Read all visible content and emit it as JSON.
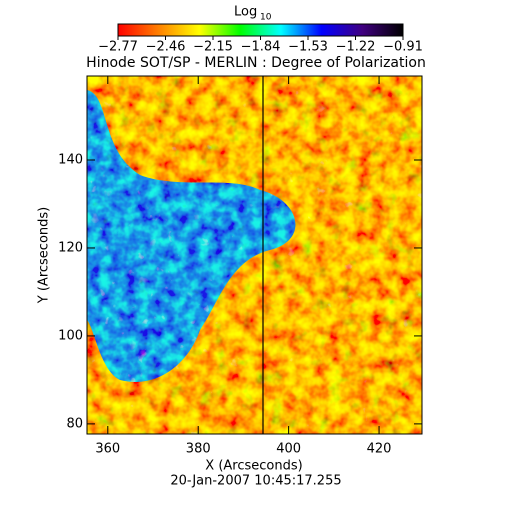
{
  "chart_data": {
    "type": "heatmap",
    "title": "Hinode SOT/SP - MERLIN : Degree of Polarization",
    "subtitle": "20-Jan-2007 10:45:17.255",
    "x_label": "X (Arcseconds)",
    "y_label": "Y (Arcseconds)",
    "colorbar_label": "Log",
    "colorbar_label_subscript": "10",
    "xlim": [
      355.4,
      429.5
    ],
    "xticks": [
      360,
      380,
      400,
      420
    ],
    "ylim": [
      77.7,
      159.1
    ],
    "yticks": [
      80,
      100,
      120,
      140
    ],
    "zlim": [
      -2.77,
      -0.91
    ],
    "zticks": [
      {
        "value": -2.77,
        "label": "−2.77"
      },
      {
        "value": -2.46,
        "label": "−2.46"
      },
      {
        "value": -2.15,
        "label": "−2.15"
      },
      {
        "value": -1.84,
        "label": "−1.84"
      },
      {
        "value": -1.53,
        "label": "−1.53"
      },
      {
        "value": -1.22,
        "label": "−1.22"
      },
      {
        "value": -0.91,
        "label": "−0.91"
      }
    ],
    "colormap": [
      "#ff0000",
      "#ff8000",
      "#ffff00",
      "#00ff00",
      "#00ffff",
      "#0000ff",
      "#400080",
      "#000000"
    ]
  }
}
